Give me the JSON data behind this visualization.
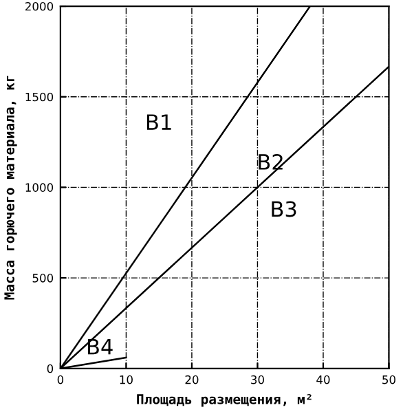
{
  "chart_data": {
    "type": "line",
    "xlabel": "Площадь размещения, м²",
    "ylabel": "Масса горючего материала, кг",
    "xlim": [
      0,
      50
    ],
    "ylim": [
      0,
      2000
    ],
    "xticks": [
      0,
      10,
      20,
      30,
      40,
      50
    ],
    "yticks": [
      0,
      500,
      1000,
      1500,
      2000
    ],
    "grid": true,
    "series": [
      {
        "color": "#000000",
        "x": [
          0,
          38
        ],
        "values": [
          0,
          2000
        ]
      },
      {
        "color": "#000000",
        "x": [
          0,
          50
        ],
        "values": [
          0,
          1667
        ]
      },
      {
        "color": "#000000",
        "x": [
          0,
          10
        ],
        "values": [
          0,
          60
        ]
      }
    ],
    "annotations": [
      "B1",
      "B2",
      "B3",
      "B4"
    ]
  }
}
